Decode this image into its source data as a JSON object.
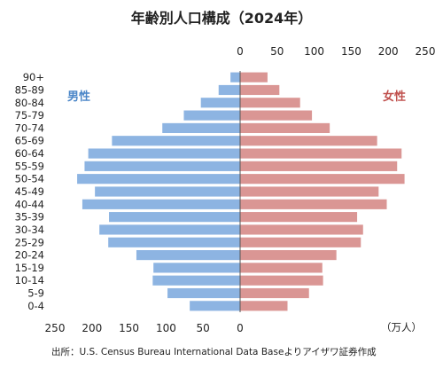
{
  "chart_data": {
    "type": "bar",
    "title": "年齢別人口構成（2024年）",
    "unit_label": "（万人）",
    "source": "出所：U.S. Census Bureau International Data Baseよりアイザワ証券作成",
    "categories": [
      "90+",
      "85-89",
      "80-84",
      "75-79",
      "70-74",
      "65-69",
      "60-64",
      "55-59",
      "50-54",
      "45-49",
      "40-44",
      "35-39",
      "30-34",
      "25-29",
      "20-24",
      "15-19",
      "10-14",
      "5-9",
      "0-4"
    ],
    "series": [
      {
        "name": "男性",
        "color": "#8db4e2",
        "values": [
          13,
          29,
          53,
          76,
          105,
          173,
          205,
          210,
          220,
          196,
          213,
          177,
          190,
          178,
          140,
          117,
          118,
          98,
          68
        ]
      },
      {
        "name": "女性",
        "color": "#da9694",
        "values": [
          37,
          53,
          81,
          97,
          121,
          185,
          218,
          212,
          222,
          187,
          198,
          158,
          166,
          163,
          130,
          111,
          112,
          93,
          64
        ]
      }
    ],
    "x_ticks_top": [
      "0",
      "50",
      "100",
      "150",
      "200",
      "250"
    ],
    "x_ticks_bottom": [
      "250",
      "200",
      "150",
      "100",
      "50",
      "0"
    ],
    "xlim": [
      0,
      250
    ],
    "grid": false,
    "legend": "inside-top"
  }
}
